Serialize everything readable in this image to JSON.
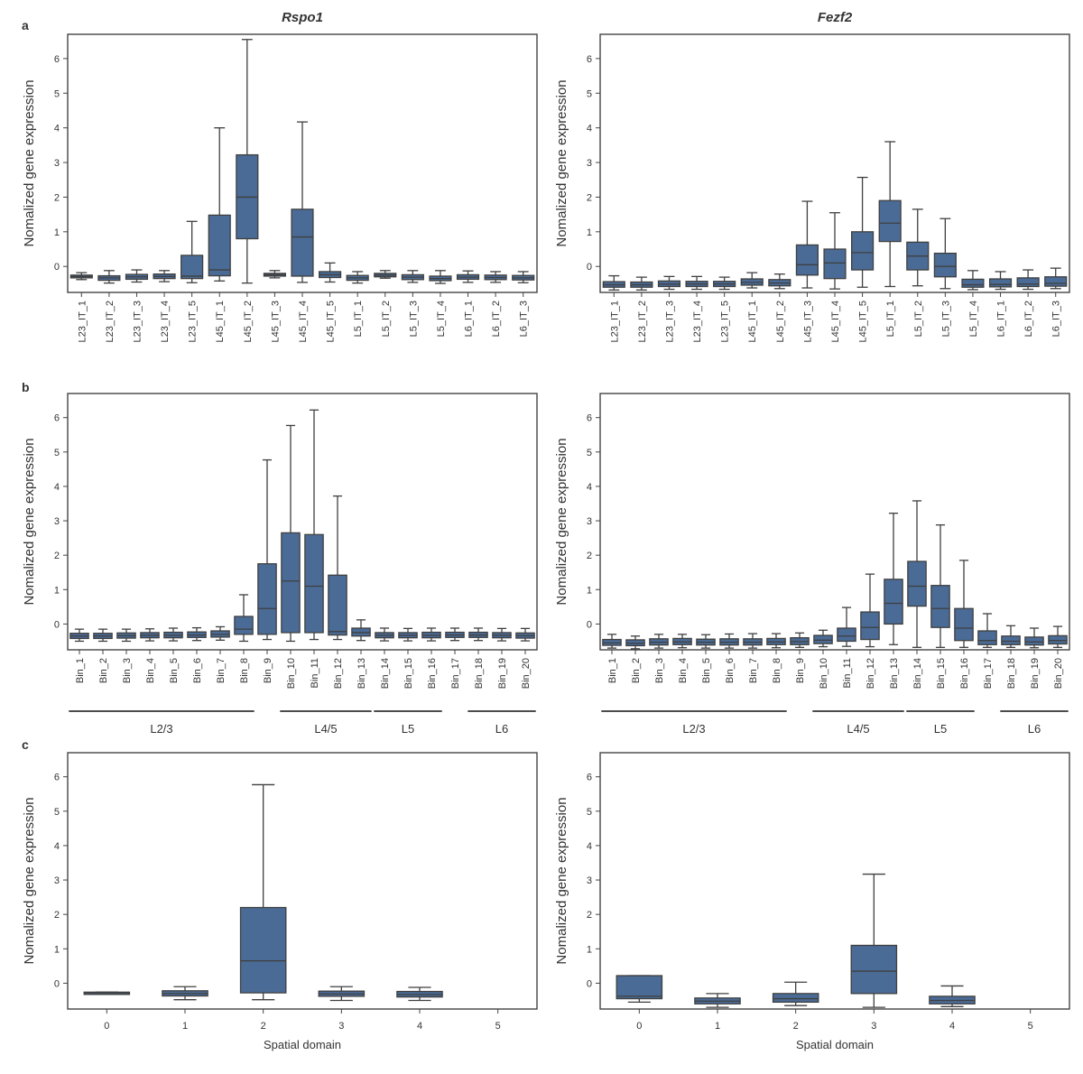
{
  "panel_letters": [
    "a",
    "b",
    "c"
  ],
  "chart_data": [
    {
      "type": "box",
      "title": "Rspo1",
      "panel": "a",
      "ylabel": "Nomalized gene expression",
      "xlabel": "",
      "ylim": [
        -0.75,
        6.7
      ],
      "yticks": [
        0,
        1,
        2,
        3,
        4,
        5,
        6
      ],
      "categories": [
        "L23_IT_1",
        "L23_IT_2",
        "L23_IT_3",
        "L23_IT_4",
        "L23_IT_5",
        "L45_IT_1",
        "L45_IT_2",
        "L45_IT_3",
        "L45_IT_4",
        "L45_IT_5",
        "L5_IT_1",
        "L5_IT_2",
        "L5_IT_3",
        "L5_IT_4",
        "L6_IT_1",
        "L6_IT_2",
        "L6_IT_3"
      ],
      "boxes": [
        {
          "whislo": -0.38,
          "q1": -0.33,
          "med": -0.29,
          "q3": -0.25,
          "whishi": -0.18
        },
        {
          "whislo": -0.48,
          "q1": -0.4,
          "med": -0.33,
          "q3": -0.27,
          "whishi": -0.12
        },
        {
          "whislo": -0.45,
          "q1": -0.37,
          "med": -0.3,
          "q3": -0.23,
          "whishi": -0.1
        },
        {
          "whislo": -0.44,
          "q1": -0.35,
          "med": -0.29,
          "q3": -0.22,
          "whishi": -0.12
        },
        {
          "whislo": -0.47,
          "q1": -0.35,
          "med": -0.28,
          "q3": 0.32,
          "whishi": 1.3
        },
        {
          "whislo": -0.42,
          "q1": -0.27,
          "med": -0.1,
          "q3": 1.48,
          "whishi": 4.0
        },
        {
          "whislo": -0.48,
          "q1": 0.8,
          "med": 2.0,
          "q3": 3.22,
          "whishi": 6.55
        },
        {
          "whislo": -0.33,
          "q1": -0.28,
          "med": -0.24,
          "q3": -0.2,
          "whishi": -0.12
        },
        {
          "whislo": -0.46,
          "q1": -0.28,
          "med": 0.85,
          "q3": 1.65,
          "whishi": 4.17
        },
        {
          "whislo": -0.45,
          "q1": -0.32,
          "med": -0.24,
          "q3": -0.15,
          "whishi": 0.1
        },
        {
          "whislo": -0.48,
          "q1": -0.4,
          "med": -0.33,
          "q3": -0.26,
          "whishi": -0.15
        },
        {
          "whislo": -0.34,
          "q1": -0.3,
          "med": -0.25,
          "q3": -0.2,
          "whishi": -0.12
        },
        {
          "whislo": -0.46,
          "q1": -0.38,
          "med": -0.31,
          "q3": -0.24,
          "whishi": -0.12
        },
        {
          "whislo": -0.49,
          "q1": -0.41,
          "med": -0.35,
          "q3": -0.28,
          "whishi": -0.12
        },
        {
          "whislo": -0.46,
          "q1": -0.37,
          "med": -0.31,
          "q3": -0.24,
          "whishi": -0.13
        },
        {
          "whislo": -0.46,
          "q1": -0.38,
          "med": -0.32,
          "q3": -0.25,
          "whishi": -0.15
        },
        {
          "whislo": -0.47,
          "q1": -0.39,
          "med": -0.33,
          "q3": -0.26,
          "whishi": -0.15
        }
      ]
    },
    {
      "type": "box",
      "title": "Fezf2",
      "panel": "a",
      "ylabel": "Nomalized gene expression",
      "xlabel": "",
      "ylim": [
        -0.75,
        6.7
      ],
      "yticks": [
        0,
        1,
        2,
        3,
        4,
        5,
        6
      ],
      "categories": [
        "L23_IT_1",
        "L23_IT_2",
        "L23_IT_3",
        "L23_IT_4",
        "L23_IT_5",
        "L45_IT_1",
        "L45_IT_2",
        "L45_IT_3",
        "L45_IT_4",
        "L45_IT_5",
        "L5_IT_1",
        "L5_IT_2",
        "L5_IT_3",
        "L5_IT_4",
        "L6_IT_1",
        "L6_IT_2",
        "L6_IT_3"
      ],
      "boxes": [
        {
          "whislo": -0.68,
          "q1": -0.6,
          "med": -0.53,
          "q3": -0.44,
          "whishi": -0.27
        },
        {
          "whislo": -0.68,
          "q1": -0.6,
          "med": -0.53,
          "q3": -0.45,
          "whishi": -0.31
        },
        {
          "whislo": -0.66,
          "q1": -0.58,
          "med": -0.51,
          "q3": -0.42,
          "whishi": -0.29
        },
        {
          "whislo": -0.66,
          "q1": -0.58,
          "med": -0.51,
          "q3": -0.43,
          "whishi": -0.29
        },
        {
          "whislo": -0.66,
          "q1": -0.58,
          "med": -0.51,
          "q3": -0.43,
          "whishi": -0.31
        },
        {
          "whislo": -0.62,
          "q1": -0.54,
          "med": -0.46,
          "q3": -0.36,
          "whishi": -0.18
        },
        {
          "whislo": -0.64,
          "q1": -0.56,
          "med": -0.48,
          "q3": -0.38,
          "whishi": -0.22
        },
        {
          "whislo": -0.62,
          "q1": -0.25,
          "med": 0.05,
          "q3": 0.62,
          "whishi": 1.88
        },
        {
          "whislo": -0.65,
          "q1": -0.35,
          "med": 0.1,
          "q3": 0.5,
          "whishi": 1.55
        },
        {
          "whislo": -0.6,
          "q1": -0.1,
          "med": 0.4,
          "q3": 1.0,
          "whishi": 2.57
        },
        {
          "whislo": -0.58,
          "q1": 0.72,
          "med": 1.25,
          "q3": 1.9,
          "whishi": 3.6
        },
        {
          "whislo": -0.56,
          "q1": -0.1,
          "med": 0.3,
          "q3": 0.7,
          "whishi": 1.65
        },
        {
          "whislo": -0.64,
          "q1": -0.3,
          "med": 0.0,
          "q3": 0.38,
          "whishi": 1.38
        },
        {
          "whislo": -0.67,
          "q1": -0.6,
          "med": -0.53,
          "q3": -0.37,
          "whishi": -0.12
        },
        {
          "whislo": -0.66,
          "q1": -0.59,
          "med": -0.52,
          "q3": -0.36,
          "whishi": -0.15
        },
        {
          "whislo": -0.66,
          "q1": -0.58,
          "med": -0.51,
          "q3": -0.33,
          "whishi": -0.1
        },
        {
          "whislo": -0.64,
          "q1": -0.57,
          "med": -0.49,
          "q3": -0.3,
          "whishi": -0.05
        }
      ]
    },
    {
      "type": "box",
      "title": "",
      "panel": "b",
      "ylabel": "Nomalized gene expression",
      "xlabel": "",
      "ylim": [
        -0.75,
        6.7
      ],
      "yticks": [
        0,
        1,
        2,
        3,
        4,
        5,
        6
      ],
      "categories": [
        "Bin_1",
        "Bin_2",
        "Bin_3",
        "Bin_4",
        "Bin_5",
        "Bin_6",
        "Bin_7",
        "Bin_8",
        "Bin_9",
        "Bin_10",
        "Bin_11",
        "Bin_12",
        "Bin_13",
        "Bin_14",
        "Bin_15",
        "Bin_16",
        "Bin_17",
        "Bin_18",
        "Bin_19",
        "Bin_20"
      ],
      "boxes": [
        {
          "whislo": -0.5,
          "q1": -0.42,
          "med": -0.35,
          "q3": -0.27,
          "whishi": -0.15
        },
        {
          "whislo": -0.5,
          "q1": -0.42,
          "med": -0.35,
          "q3": -0.27,
          "whishi": -0.15
        },
        {
          "whislo": -0.5,
          "q1": -0.41,
          "med": -0.34,
          "q3": -0.26,
          "whishi": -0.15
        },
        {
          "whislo": -0.49,
          "q1": -0.4,
          "med": -0.33,
          "q3": -0.25,
          "whishi": -0.14
        },
        {
          "whislo": -0.49,
          "q1": -0.4,
          "med": -0.33,
          "q3": -0.24,
          "whishi": -0.12
        },
        {
          "whislo": -0.48,
          "q1": -0.39,
          "med": -0.32,
          "q3": -0.23,
          "whishi": -0.11
        },
        {
          "whislo": -0.47,
          "q1": -0.38,
          "med": -0.3,
          "q3": -0.2,
          "whishi": -0.08
        },
        {
          "whislo": -0.5,
          "q1": -0.3,
          "med": -0.15,
          "q3": 0.22,
          "whishi": 0.85
        },
        {
          "whislo": -0.45,
          "q1": -0.3,
          "med": 0.45,
          "q3": 1.75,
          "whishi": 4.77
        },
        {
          "whislo": -0.5,
          "q1": -0.25,
          "med": 1.25,
          "q3": 2.65,
          "whishi": 5.77
        },
        {
          "whislo": -0.45,
          "q1": -0.25,
          "med": 1.1,
          "q3": 2.6,
          "whishi": 6.22
        },
        {
          "whislo": -0.45,
          "q1": -0.32,
          "med": -0.22,
          "q3": 1.42,
          "whishi": 3.72
        },
        {
          "whislo": -0.48,
          "q1": -0.35,
          "med": -0.25,
          "q3": -0.12,
          "whishi": 0.12
        },
        {
          "whislo": -0.49,
          "q1": -0.4,
          "med": -0.33,
          "q3": -0.25,
          "whishi": -0.12
        },
        {
          "whislo": -0.49,
          "q1": -0.4,
          "med": -0.33,
          "q3": -0.25,
          "whishi": -0.13
        },
        {
          "whislo": -0.49,
          "q1": -0.4,
          "med": -0.33,
          "q3": -0.24,
          "whishi": -0.12
        },
        {
          "whislo": -0.48,
          "q1": -0.39,
          "med": -0.32,
          "q3": -0.24,
          "whishi": -0.12
        },
        {
          "whislo": -0.48,
          "q1": -0.39,
          "med": -0.32,
          "q3": -0.24,
          "whishi": -0.12
        },
        {
          "whislo": -0.49,
          "q1": -0.4,
          "med": -0.33,
          "q3": -0.25,
          "whishi": -0.13
        },
        {
          "whislo": -0.49,
          "q1": -0.41,
          "med": -0.34,
          "q3": -0.26,
          "whishi": -0.13
        }
      ],
      "layer_groups": [
        {
          "label": "L2/3",
          "from": 0,
          "to": 7
        },
        {
          "label": "L4/5",
          "from": 9,
          "to": 12
        },
        {
          "label": "L5",
          "from": 13,
          "to": 15
        },
        {
          "label": "L6",
          "from": 17,
          "to": 19
        }
      ]
    },
    {
      "type": "box",
      "title": "",
      "panel": "b",
      "ylabel": "Nomalized gene expression",
      "xlabel": "",
      "ylim": [
        -0.75,
        6.7
      ],
      "yticks": [
        0,
        1,
        2,
        3,
        4,
        5,
        6
      ],
      "categories": [
        "Bin_1",
        "Bin_2",
        "Bin_3",
        "Bin_4",
        "Bin_5",
        "Bin_6",
        "Bin_7",
        "Bin_8",
        "Bin_9",
        "Bin_10",
        "Bin_11",
        "Bin_12",
        "Bin_13",
        "Bin_14",
        "Bin_15",
        "Bin_16",
        "Bin_17",
        "Bin_18",
        "Bin_19",
        "Bin_20"
      ],
      "boxes": [
        {
          "whislo": -0.7,
          "q1": -0.62,
          "med": -0.55,
          "q3": -0.45,
          "whishi": -0.3
        },
        {
          "whislo": -0.72,
          "q1": -0.63,
          "med": -0.56,
          "q3": -0.46,
          "whishi": -0.35
        },
        {
          "whislo": -0.7,
          "q1": -0.61,
          "med": -0.53,
          "q3": -0.43,
          "whishi": -0.3
        },
        {
          "whislo": -0.69,
          "q1": -0.6,
          "med": -0.52,
          "q3": -0.42,
          "whishi": -0.3
        },
        {
          "whislo": -0.7,
          "q1": -0.61,
          "med": -0.53,
          "q3": -0.44,
          "whishi": -0.31
        },
        {
          "whislo": -0.7,
          "q1": -0.61,
          "med": -0.53,
          "q3": -0.43,
          "whishi": -0.29
        },
        {
          "whislo": -0.7,
          "q1": -0.61,
          "med": -0.53,
          "q3": -0.43,
          "whishi": -0.28
        },
        {
          "whislo": -0.69,
          "q1": -0.6,
          "med": -0.52,
          "q3": -0.42,
          "whishi": -0.28
        },
        {
          "whislo": -0.68,
          "q1": -0.6,
          "med": -0.51,
          "q3": -0.4,
          "whishi": -0.26
        },
        {
          "whislo": -0.66,
          "q1": -0.57,
          "med": -0.47,
          "q3": -0.33,
          "whishi": -0.18
        },
        {
          "whislo": -0.65,
          "q1": -0.5,
          "med": -0.35,
          "q3": -0.12,
          "whishi": 0.48
        },
        {
          "whislo": -0.66,
          "q1": -0.45,
          "med": -0.1,
          "q3": 0.35,
          "whishi": 1.45
        },
        {
          "whislo": -0.6,
          "q1": 0.0,
          "med": 0.6,
          "q3": 1.3,
          "whishi": 3.22
        },
        {
          "whislo": -0.68,
          "q1": 0.52,
          "med": 1.1,
          "q3": 1.82,
          "whishi": 3.58
        },
        {
          "whislo": -0.68,
          "q1": -0.1,
          "med": 0.45,
          "q3": 1.12,
          "whishi": 2.88
        },
        {
          "whislo": -0.68,
          "q1": -0.48,
          "med": -0.12,
          "q3": 0.45,
          "whishi": 1.85
        },
        {
          "whislo": -0.68,
          "q1": -0.6,
          "med": -0.48,
          "q3": -0.2,
          "whishi": 0.3
        },
        {
          "whislo": -0.68,
          "q1": -0.6,
          "med": -0.5,
          "q3": -0.35,
          "whishi": -0.05
        },
        {
          "whislo": -0.69,
          "q1": -0.61,
          "med": -0.52,
          "q3": -0.38,
          "whishi": -0.12
        },
        {
          "whislo": -0.68,
          "q1": -0.58,
          "med": -0.48,
          "q3": -0.34,
          "whishi": -0.07
        }
      ],
      "layer_groups": [
        {
          "label": "L2/3",
          "from": 0,
          "to": 7
        },
        {
          "label": "L4/5",
          "from": 9,
          "to": 12
        },
        {
          "label": "L5",
          "from": 13,
          "to": 15
        },
        {
          "label": "L6",
          "from": 17,
          "to": 19
        }
      ]
    },
    {
      "type": "box",
      "title": "",
      "panel": "c",
      "ylabel": "Nomalized gene expression",
      "xlabel": "Spatial domain",
      "ylim": [
        -0.75,
        6.7
      ],
      "yticks": [
        0,
        1,
        2,
        3,
        4,
        5,
        6
      ],
      "categories": [
        "0",
        "1",
        "2",
        "3",
        "4",
        "5"
      ],
      "boxes": [
        {
          "whislo": -0.31,
          "q1": -0.31,
          "med": -0.28,
          "q3": -0.26,
          "whishi": -0.26
        },
        {
          "whislo": -0.48,
          "q1": -0.37,
          "med": -0.3,
          "q3": -0.22,
          "whishi": -0.1
        },
        {
          "whislo": -0.48,
          "q1": -0.28,
          "med": 0.65,
          "q3": 2.2,
          "whishi": 5.77
        },
        {
          "whislo": -0.5,
          "q1": -0.38,
          "med": -0.31,
          "q3": -0.23,
          "whishi": -0.1
        },
        {
          "whislo": -0.5,
          "q1": -0.4,
          "med": -0.33,
          "q3": -0.24,
          "whishi": -0.12
        },
        null
      ]
    },
    {
      "type": "box",
      "title": "",
      "panel": "c",
      "ylabel": "Nomalized gene expression",
      "xlabel": "Spatial domain",
      "ylim": [
        -0.75,
        6.7
      ],
      "yticks": [
        0,
        1,
        2,
        3,
        4,
        5,
        6
      ],
      "categories": [
        "0",
        "1",
        "2",
        "3",
        "4",
        "5"
      ],
      "boxes": [
        {
          "whislo": -0.55,
          "q1": -0.45,
          "med": -0.38,
          "q3": 0.22,
          "whishi": 0.22
        },
        {
          "whislo": -0.7,
          "q1": -0.6,
          "med": -0.52,
          "q3": -0.43,
          "whishi": -0.3
        },
        {
          "whislo": -0.65,
          "q1": -0.55,
          "med": -0.45,
          "q3": -0.3,
          "whishi": 0.03
        },
        {
          "whislo": -0.7,
          "q1": -0.3,
          "med": 0.35,
          "q3": 1.1,
          "whishi": 3.17
        },
        {
          "whislo": -0.68,
          "q1": -0.6,
          "med": -0.5,
          "q3": -0.38,
          "whishi": -0.08
        },
        null
      ]
    }
  ],
  "colors": {
    "box_fill": "#4a6b96",
    "line": "#3f3f3f",
    "axis": "#444444"
  }
}
